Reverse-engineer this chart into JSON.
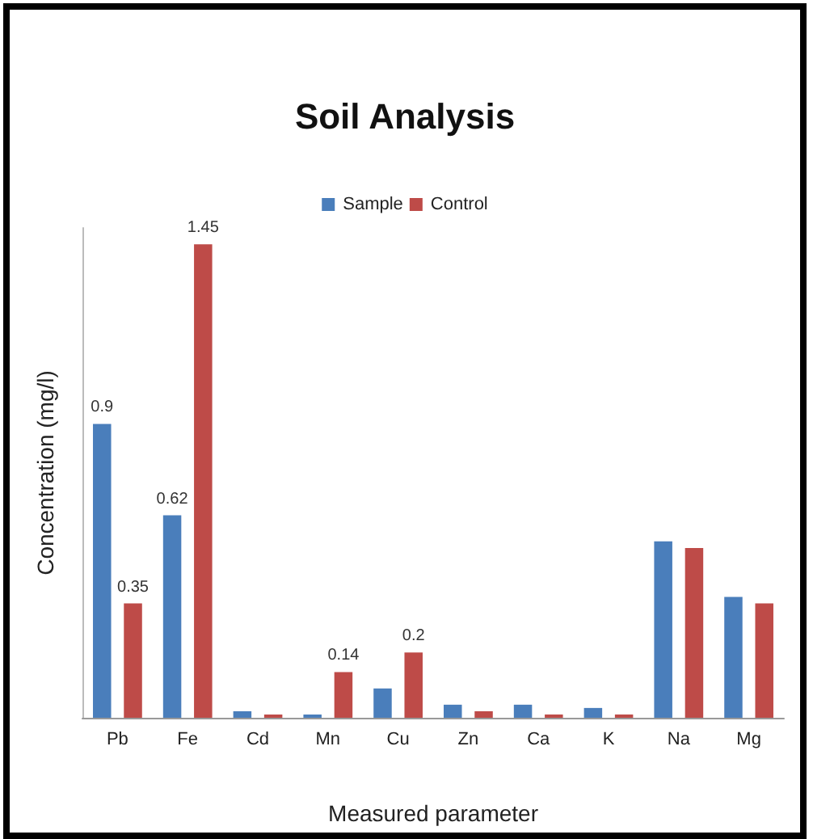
{
  "chart_data": {
    "type": "bar",
    "title": "Soil Analysis",
    "xlabel": "Measured parameter",
    "ylabel": "Concentration (mg/l)",
    "categories": [
      "Pb",
      "Fe",
      "Cd",
      "Mn",
      "Cu",
      "Zn",
      "Ca",
      "K",
      "Na",
      "Mg"
    ],
    "series": [
      {
        "name": "Sample",
        "color": "#4a7ebb",
        "values": [
          0.9,
          0.62,
          0.02,
          0.01,
          0.09,
          0.04,
          0.04,
          0.03,
          0.54,
          0.37
        ],
        "value_labels": [
          "0.9",
          "0.62",
          null,
          null,
          null,
          null,
          null,
          null,
          null,
          null
        ]
      },
      {
        "name": "Control",
        "color": "#be4b48",
        "values": [
          0.35,
          1.45,
          0.01,
          0.14,
          0.2,
          0.02,
          0.01,
          0.01,
          0.52,
          0.35
        ],
        "value_labels": [
          "0.35",
          "1.45",
          null,
          "0.14",
          "0.2",
          null,
          null,
          null,
          null,
          null
        ]
      }
    ],
    "legend": "top",
    "grid": false,
    "tick_labels": "x"
  }
}
